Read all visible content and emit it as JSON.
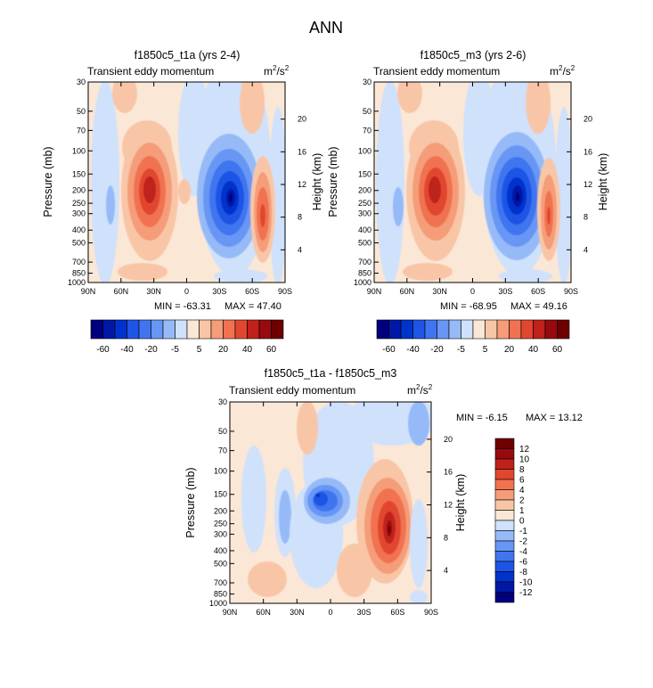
{
  "figure_title": "ANN",
  "units_main": "m",
  "units_sup1": "2",
  "units_mid": "/s",
  "units_sup2": "2",
  "chart_data": [
    {
      "type": "heatmap",
      "title": "f1850c5_t1a (yrs 2-4)",
      "subtitle": "Transient eddy momentum",
      "xlabel": "",
      "ylabel": "Pressure (mb)",
      "ylabel_right": "Height (km)",
      "x_ticks": [
        "90N",
        "60N",
        "30N",
        "0",
        "30S",
        "60S",
        "90S"
      ],
      "x_range": [
        90,
        -90
      ],
      "y_ticks": [
        "30",
        "50",
        "70",
        "100",
        "150",
        "200",
        "250",
        "300",
        "400",
        "500",
        "700",
        "850",
        "1000"
      ],
      "y_range_mb": [
        30,
        1000
      ],
      "height_ticks": [
        "20",
        "16",
        "12",
        "8",
        "4"
      ],
      "min_label": "MIN = -63.31",
      "max_label": "MAX = 47.40",
      "features": [
        {
          "lat": 33,
          "p": 220,
          "value": 47.4
        },
        {
          "lat": -35,
          "p": 230,
          "value": -63.31
        },
        {
          "lat": -65,
          "p": 300,
          "value": 30
        },
        {
          "lat": 70,
          "p": 250,
          "value": -8
        },
        {
          "lat": 0,
          "p": 200,
          "value": 8
        }
      ]
    },
    {
      "type": "heatmap",
      "title": "f1850c5_m3 (yrs 2-6)",
      "subtitle": "Transient eddy momentum",
      "xlabel": "",
      "ylabel": "Pressure (mb)",
      "ylabel_right": "Height (km)",
      "x_ticks": [
        "90N",
        "60N",
        "30N",
        "0",
        "30S",
        "60S",
        "90S"
      ],
      "x_range": [
        90,
        -90
      ],
      "y_ticks": [
        "30",
        "50",
        "70",
        "100",
        "150",
        "200",
        "250",
        "300",
        "400",
        "500",
        "700",
        "850",
        "1000"
      ],
      "y_range_mb": [
        30,
        1000
      ],
      "height_ticks": [
        "20",
        "16",
        "12",
        "8",
        "4"
      ],
      "min_label": "MIN = -68.95",
      "max_label": "MAX = 49.16",
      "features": [
        {
          "lat": 33,
          "p": 220,
          "value": 49.16
        },
        {
          "lat": -37,
          "p": 230,
          "value": -68.95
        },
        {
          "lat": -62,
          "p": 280,
          "value": 28
        },
        {
          "lat": 70,
          "p": 250,
          "value": -8
        }
      ]
    },
    {
      "type": "heatmap",
      "title": "f1850c5_t1a - f1850c5_m3",
      "subtitle": "Transient eddy momentum",
      "xlabel": "",
      "ylabel": "Pressure (mb)",
      "ylabel_right": "Height (km)",
      "x_ticks": [
        "90N",
        "60N",
        "30N",
        "0",
        "30S",
        "60S",
        "90S"
      ],
      "x_range": [
        90,
        -90
      ],
      "y_ticks": [
        "30",
        "50",
        "70",
        "100",
        "150",
        "200",
        "250",
        "300",
        "400",
        "500",
        "700",
        "850",
        "1000"
      ],
      "y_range_mb": [
        30,
        1000
      ],
      "height_ticks": [
        "20",
        "16",
        "12",
        "8",
        "4"
      ],
      "min_label": "MIN =  -6.15",
      "max_label": "MAX = 13.12",
      "features": [
        {
          "lat": -55,
          "p": 280,
          "value": 13.12
        },
        {
          "lat": 12,
          "p": 160,
          "value": -6.15
        },
        {
          "lat": 42,
          "p": 250,
          "value": -2
        },
        {
          "lat": -5,
          "p": 500,
          "value": -1
        }
      ]
    }
  ],
  "colorbar_top": {
    "colors": [
      "#00007f",
      "#0018a6",
      "#0032cc",
      "#1f55e6",
      "#4175f0",
      "#6896f4",
      "#96baf8",
      "#cfe1fb",
      "#fbe7d6",
      "#f8c6a7",
      "#f59d78",
      "#f07251",
      "#e1472e",
      "#c0211a",
      "#980a0e",
      "#6e0000"
    ],
    "labels": [
      "-60",
      "-40",
      "-20",
      "-5",
      "5",
      "20",
      "40",
      "60"
    ]
  },
  "colorbar_diff": {
    "colors": [
      "#00007f",
      "#0018a6",
      "#0032cc",
      "#1f55e6",
      "#4175f0",
      "#6896f4",
      "#96baf8",
      "#cfe1fb",
      "#fbe7d6",
      "#f8c6a7",
      "#f59d78",
      "#f07251",
      "#e1472e",
      "#c0211a",
      "#980a0e",
      "#6e0000"
    ],
    "labels": [
      "12",
      "10",
      "8",
      "6",
      "4",
      "2",
      "1",
      "0",
      "-1",
      "-2",
      "-4",
      "-6",
      "-8",
      "-10",
      "-12"
    ]
  }
}
